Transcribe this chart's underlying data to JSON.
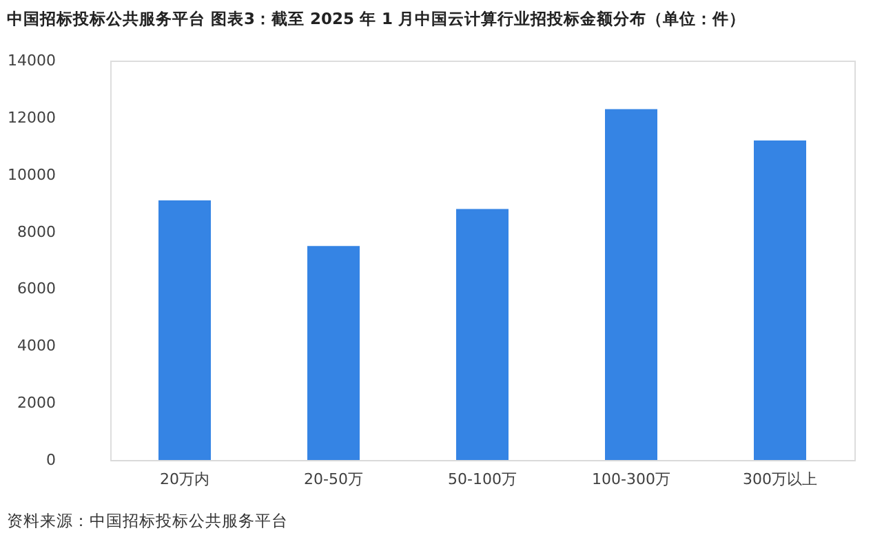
{
  "chart_data": {
    "type": "bar",
    "title": "中国招标投标公共服务平台  图表3：截至 2025 年 1 月中国云计算行业招投标金额分布（单位：件）",
    "categories": [
      "20万内",
      "20-50万",
      "50-100万",
      "100-300万",
      "300万以上"
    ],
    "values": [
      9100,
      7500,
      8800,
      12300,
      11200
    ],
    "color": "#3584e4",
    "ylim": [
      0,
      14000
    ],
    "yticks": [
      0,
      2000,
      4000,
      6000,
      8000,
      10000,
      12000,
      14000
    ],
    "grid": false,
    "annotations": [
      "资料来源：中国招标投标公共服务平台"
    ]
  }
}
